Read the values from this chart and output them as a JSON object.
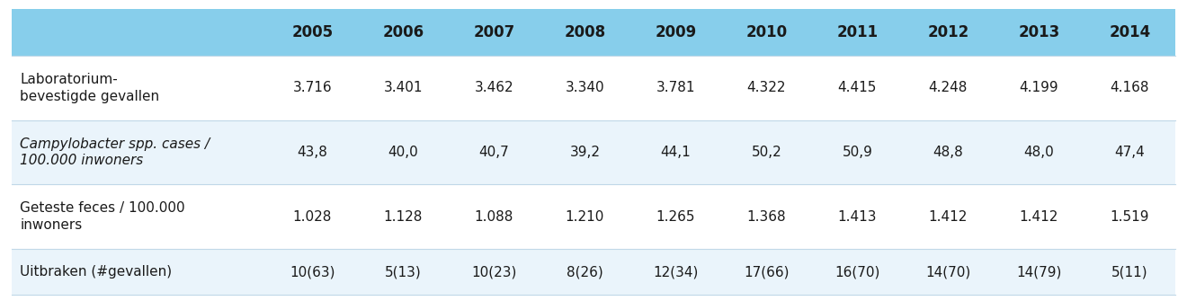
{
  "header_bg": "#87CEEB",
  "row_bg_odd": "#EAF4FB",
  "row_bg_even": "#FFFFFF",
  "text_color": "#1a1a1a",
  "header_text_color": "#1a1a1a",
  "years": [
    "2005",
    "2006",
    "2007",
    "2008",
    "2009",
    "2010",
    "2011",
    "2012",
    "2013",
    "2014"
  ],
  "rows": [
    {
      "label": "Laboratorium-\nbevestigde gevallen",
      "italic": false,
      "values": [
        "3.716",
        "3.401",
        "3.462",
        "3.340",
        "3.781",
        "4.322",
        "4.415",
        "4.248",
        "4.199",
        "4.168"
      ]
    },
    {
      "label": "Campylobacter spp. cases /\n100.000 inwoners",
      "italic": true,
      "values": [
        "43,8",
        "40,0",
        "40,7",
        "39,2",
        "44,1",
        "50,2",
        "50,9",
        "48,8",
        "48,0",
        "47,4"
      ]
    },
    {
      "label": "Geteste feces / 100.000\ninwoners",
      "italic": false,
      "values": [
        "1.028",
        "1.128",
        "1.088",
        "1.210",
        "1.265",
        "1.368",
        "1.413",
        "1.412",
        "1.412",
        "1.519"
      ]
    },
    {
      "label": "Uitbraken (#gevallen)",
      "italic": false,
      "values": [
        "10(63)",
        "5(13)",
        "10(23)",
        "8(26)",
        "12(34)",
        "17(66)",
        "16(70)",
        "14(70)",
        "14(79)",
        "5(11)"
      ]
    }
  ],
  "font_size": 11,
  "header_font_size": 12
}
